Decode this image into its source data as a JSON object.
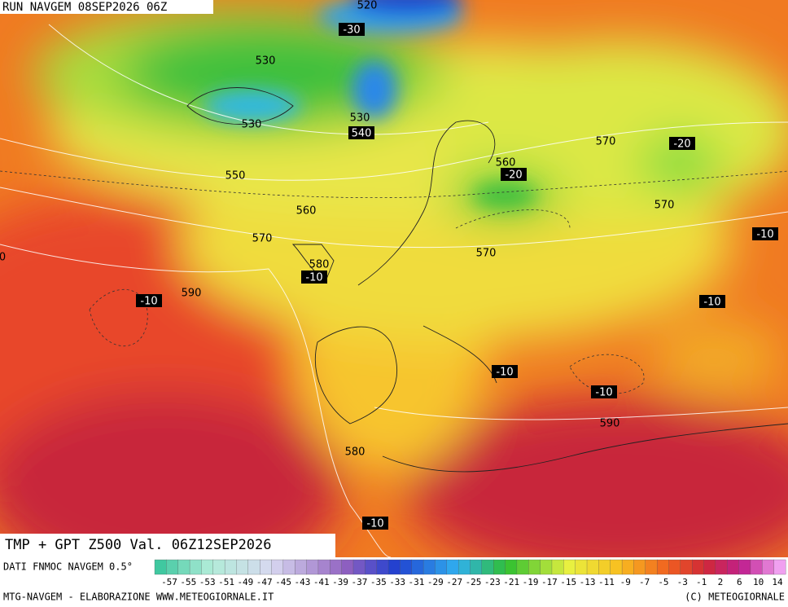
{
  "header": {
    "title": "RUN NAVGEM 08SEP2026 06Z"
  },
  "map": {
    "labels": [
      "520",
      "-30",
      "530",
      "530",
      "530",
      "540",
      "550",
      "560",
      "570",
      "580",
      "-10",
      "0",
      "590",
      "-10",
      "560",
      "-20",
      "570",
      "-20",
      "570",
      "-10",
      "570",
      "-10",
      "-10",
      "-10",
      "590",
      "580",
      "-10"
    ]
  },
  "footer": {
    "product": "TMP + GPT Z500 Val. 06Z12SEP2026",
    "source": "DATI FNMOC NAVGEM 0.5°",
    "credits": "MTG-NAVGEM - ELABORAZIONE WWW.METEOGIORNALE.IT",
    "copyright": "(C) METEOGIORNALE"
  },
  "colorbar": {
    "labels": [
      -57,
      -55,
      -53,
      -51,
      -49,
      -47,
      -45,
      -43,
      -41,
      -39,
      -37,
      -35,
      -33,
      -31,
      -29,
      -27,
      -25,
      -23,
      -21,
      -19,
      -17,
      -15,
      -13,
      -11,
      -9,
      -7,
      -5,
      -3,
      -1,
      2,
      6,
      10,
      14
    ]
  }
}
